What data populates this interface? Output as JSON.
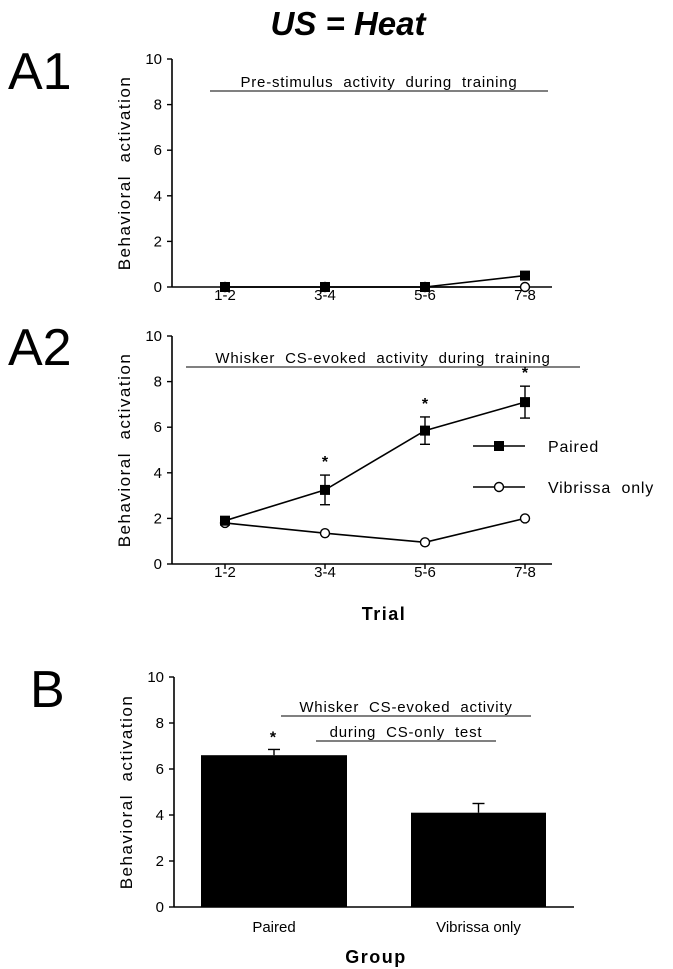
{
  "figure_title": "US = Heat",
  "chart_data": [
    {
      "panel": "A1",
      "type": "line",
      "annotation": [
        "Pre-stimulus  activity  during  training"
      ],
      "ylabel": "Behavioral  activation",
      "xlabel": "",
      "categories": [
        "1-2",
        "3-4",
        "5-6",
        "7-8"
      ],
      "yticks": [
        "0",
        "2",
        "4",
        "6",
        "8",
        "10"
      ],
      "ylim": [
        0,
        10
      ],
      "series": [
        {
          "marker": "filled-square",
          "values": [
            0.0,
            0.0,
            0.0,
            0.5
          ],
          "err": [
            0,
            0,
            0,
            0
          ],
          "sig": [
            false,
            false,
            false,
            false
          ]
        },
        {
          "marker": "open-circle",
          "values": [
            0.0,
            0.0,
            0.0,
            0.0
          ],
          "err": [
            0,
            0,
            0,
            0
          ],
          "sig": [
            false,
            false,
            false,
            false
          ]
        }
      ]
    },
    {
      "panel": "A2",
      "type": "line",
      "annotation": [
        "Whisker  CS-evoked  activity  during  training"
      ],
      "ylabel": "Behavioral  activation",
      "xlabel": "Trial",
      "categories": [
        "1-2",
        "3-4",
        "5-6",
        "7-8"
      ],
      "yticks": [
        "0",
        "2",
        "4",
        "6",
        "8",
        "10"
      ],
      "ylim": [
        0,
        10
      ],
      "legend_position": "right",
      "series": [
        {
          "name": "Paired",
          "marker": "filled-square",
          "values": [
            1.9,
            3.25,
            5.85,
            7.1
          ],
          "err": [
            0,
            0.65,
            0.6,
            0.7
          ],
          "sig": [
            false,
            true,
            true,
            true
          ]
        },
        {
          "name": "Vibrissa  only",
          "marker": "open-circle",
          "values": [
            1.8,
            1.35,
            0.95,
            2.0
          ],
          "err": [
            0,
            0,
            0,
            0
          ],
          "sig": [
            false,
            false,
            false,
            false
          ]
        }
      ]
    },
    {
      "panel": "B",
      "type": "bar",
      "annotation": [
        "Whisker  CS-evoked  activity",
        "during  CS-only  test"
      ],
      "ylabel": "Behavioral  activation",
      "xlabel": "Group",
      "categories": [
        "Paired",
        "Vibrissa only"
      ],
      "yticks": [
        "0",
        "2",
        "4",
        "6",
        "8",
        "10"
      ],
      "ylim": [
        0,
        10
      ],
      "values": [
        6.6,
        4.1
      ],
      "err": [
        0.25,
        0.4
      ],
      "sig": [
        true,
        false
      ]
    }
  ],
  "sig_marker": "*"
}
